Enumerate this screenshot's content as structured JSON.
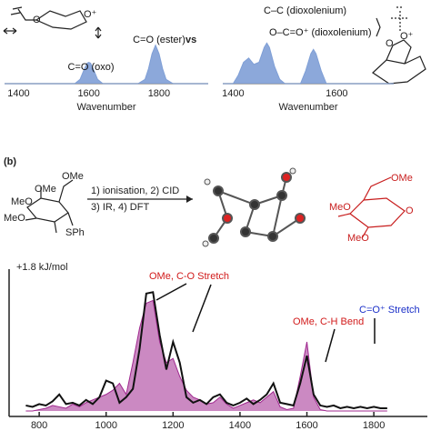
{
  "chart_data": [
    {
      "type": "line",
      "x": [
        1360,
        1560,
        1575,
        1585,
        1595,
        1600,
        1605,
        1615,
        1625,
        1640,
        1740,
        1760,
        1770,
        1780,
        1790,
        1800,
        1810,
        1820,
        1840,
        1940
      ],
      "series": [
        {
          "color": "#7f9fd6",
          "fill": true,
          "values": [
            0,
            0,
            0.1,
            0.3,
            0.48,
            0.5,
            0.48,
            0.3,
            0.1,
            0,
            0,
            0.1,
            0.35,
            0.7,
            0.9,
            0.7,
            0.35,
            0.1,
            0,
            0
          ]
        }
      ],
      "xlim": [
        1360,
        1940
      ],
      "ylim": [
        0,
        1
      ],
      "xticks": [
        1400,
        1600,
        1800
      ],
      "x_label": "Wavenumber",
      "annotations": [
        {
          "text": "C=O (oxo)",
          "color": "#111111"
        },
        {
          "text": "C=O (ester)",
          "color": "#111111"
        }
      ]
    },
    {
      "type": "line",
      "x": [
        1380,
        1400,
        1410,
        1420,
        1430,
        1440,
        1450,
        1460,
        1465,
        1470,
        1480,
        1490,
        1500,
        1530,
        1540,
        1550,
        1555,
        1560,
        1570,
        1580,
        1710
      ],
      "series": [
        {
          "color": "#7f9fd6",
          "fill": true,
          "values": [
            0,
            0,
            0.2,
            0.5,
            0.6,
            0.45,
            0.5,
            0.85,
            0.95,
            0.85,
            0.4,
            0.1,
            0,
            0,
            0.3,
            0.7,
            0.8,
            0.7,
            0.3,
            0,
            0
          ]
        }
      ],
      "xlim": [
        1380,
        1710
      ],
      "ylim": [
        0,
        1
      ],
      "xticks": [
        1400,
        1600
      ],
      "x_label": "Wavenumber",
      "annotations": [
        {
          "text": "C–C (dioxolenium)",
          "color": "#111111"
        },
        {
          "text": "O–C=O⁺ (dioxolenium)",
          "color": "#111111"
        }
      ]
    },
    {
      "type": "line",
      "x": [
        760,
        780,
        800,
        820,
        840,
        860,
        880,
        900,
        920,
        940,
        960,
        980,
        1000,
        1020,
        1040,
        1060,
        1080,
        1100,
        1120,
        1140,
        1160,
        1180,
        1200,
        1220,
        1240,
        1260,
        1280,
        1300,
        1320,
        1340,
        1360,
        1380,
        1400,
        1420,
        1440,
        1460,
        1480,
        1500,
        1520,
        1540,
        1560,
        1580,
        1600,
        1620,
        1640,
        1660,
        1680,
        1700,
        1720,
        1740,
        1760,
        1780,
        1800,
        1820,
        1840
      ],
      "series": [
        {
          "color": "#a0288f",
          "fill": true,
          "values": [
            0,
            0,
            0.01,
            0.02,
            0.04,
            0.03,
            0.02,
            0.05,
            0.03,
            0.06,
            0.08,
            0.1,
            0.12,
            0.15,
            0.2,
            0.12,
            0.35,
            0.6,
            0.78,
            0.8,
            0.5,
            0.35,
            0.38,
            0.25,
            0.15,
            0.1,
            0.08,
            0.05,
            0.06,
            0.1,
            0.05,
            0.02,
            0.04,
            0.06,
            0.08,
            0.06,
            0.1,
            0.14,
            0.03,
            0.01,
            0.02,
            0.25,
            0.5,
            0.1,
            0.01,
            0,
            0,
            0,
            0,
            0,
            0,
            0,
            0,
            0,
            0
          ]
        },
        {
          "color": "#111111",
          "fill": false,
          "values": [
            0.04,
            0.03,
            0.05,
            0.04,
            0.07,
            0.12,
            0.05,
            0.06,
            0.04,
            0.08,
            0.05,
            0.1,
            0.22,
            0.2,
            0.06,
            0.1,
            0.16,
            0.45,
            0.85,
            0.86,
            0.55,
            0.3,
            0.5,
            0.35,
            0.1,
            0.06,
            0.08,
            0.05,
            0.1,
            0.12,
            0.06,
            0.04,
            0.06,
            0.09,
            0.05,
            0.08,
            0.12,
            0.2,
            0.06,
            0.05,
            0.04,
            0.2,
            0.4,
            0.12,
            0.04,
            0.03,
            0.04,
            0.02,
            0.03,
            0.02,
            0.03,
            0.02,
            0.03,
            0.02,
            0.02
          ]
        }
      ],
      "xlim": [
        710,
        1960
      ],
      "ylim": [
        0,
        1
      ],
      "xticks": [
        800,
        1000,
        1200,
        1400,
        1600,
        1800
      ],
      "y_label": "+1.8 kJ/mol",
      "annotations": [
        {
          "text": "OMe, C-O Stretch",
          "color": "#d11a1a"
        },
        {
          "text": "OMe, C-H Bend",
          "color": "#d11a1a"
        },
        {
          "text": "C=O⁺ Stretch",
          "color": "#1a2fc8"
        }
      ]
    }
  ],
  "separator_text": "vs",
  "panel_label": "(b)",
  "top_left_molecule": [
    "O",
    "O⁺"
  ],
  "top_right_molecule": [
    "O",
    "O⁺"
  ],
  "scheme": {
    "reagents": [
      "1) ionisation, 2) CID",
      "3) IR, 4) DFT"
    ],
    "reactant_labels": [
      "OMe",
      "OMe",
      "MeO",
      "MeO",
      "SPh"
    ],
    "product_labels": [
      "OMe",
      "MeO",
      "MeO",
      "O"
    ]
  }
}
